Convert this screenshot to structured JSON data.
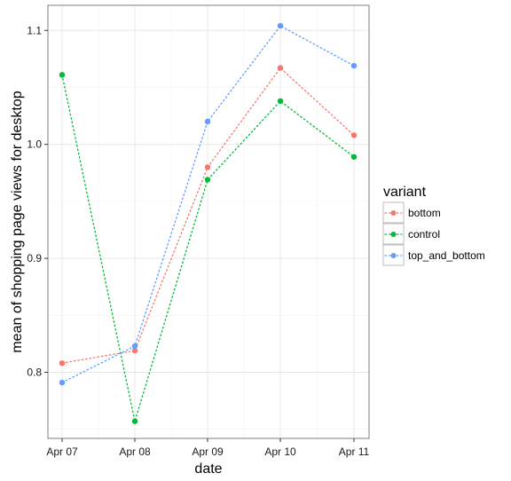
{
  "chart_data": {
    "type": "line",
    "x": [
      "Apr 07",
      "Apr 08",
      "Apr 09",
      "Apr 10",
      "Apr 11"
    ],
    "series": [
      {
        "name": "bottom",
        "color": "#F8766D",
        "values": [
          0.808,
          0.819,
          0.98,
          1.067,
          1.008
        ]
      },
      {
        "name": "control",
        "color": "#00BA38",
        "values": [
          1.061,
          0.757,
          0.969,
          1.038,
          0.989
        ]
      },
      {
        "name": "top_and_bottom",
        "color": "#619CFF",
        "values": [
          0.791,
          0.823,
          1.02,
          1.104,
          1.069
        ]
      }
    ],
    "yticks": [
      0.8,
      0.9,
      1.0,
      1.1
    ],
    "ytick_labels": [
      "0.8",
      "0.9",
      "1.0",
      "1.1"
    ],
    "ylim": [
      0.742,
      1.122
    ],
    "xlabel": "date",
    "ylabel": "mean of shopping page views for desktop",
    "legend_title": "variant",
    "legend_position": "right",
    "line_style": "dotted",
    "markers": "circle",
    "grid": true,
    "theme": "white background with light grey grid and grey panel border"
  }
}
